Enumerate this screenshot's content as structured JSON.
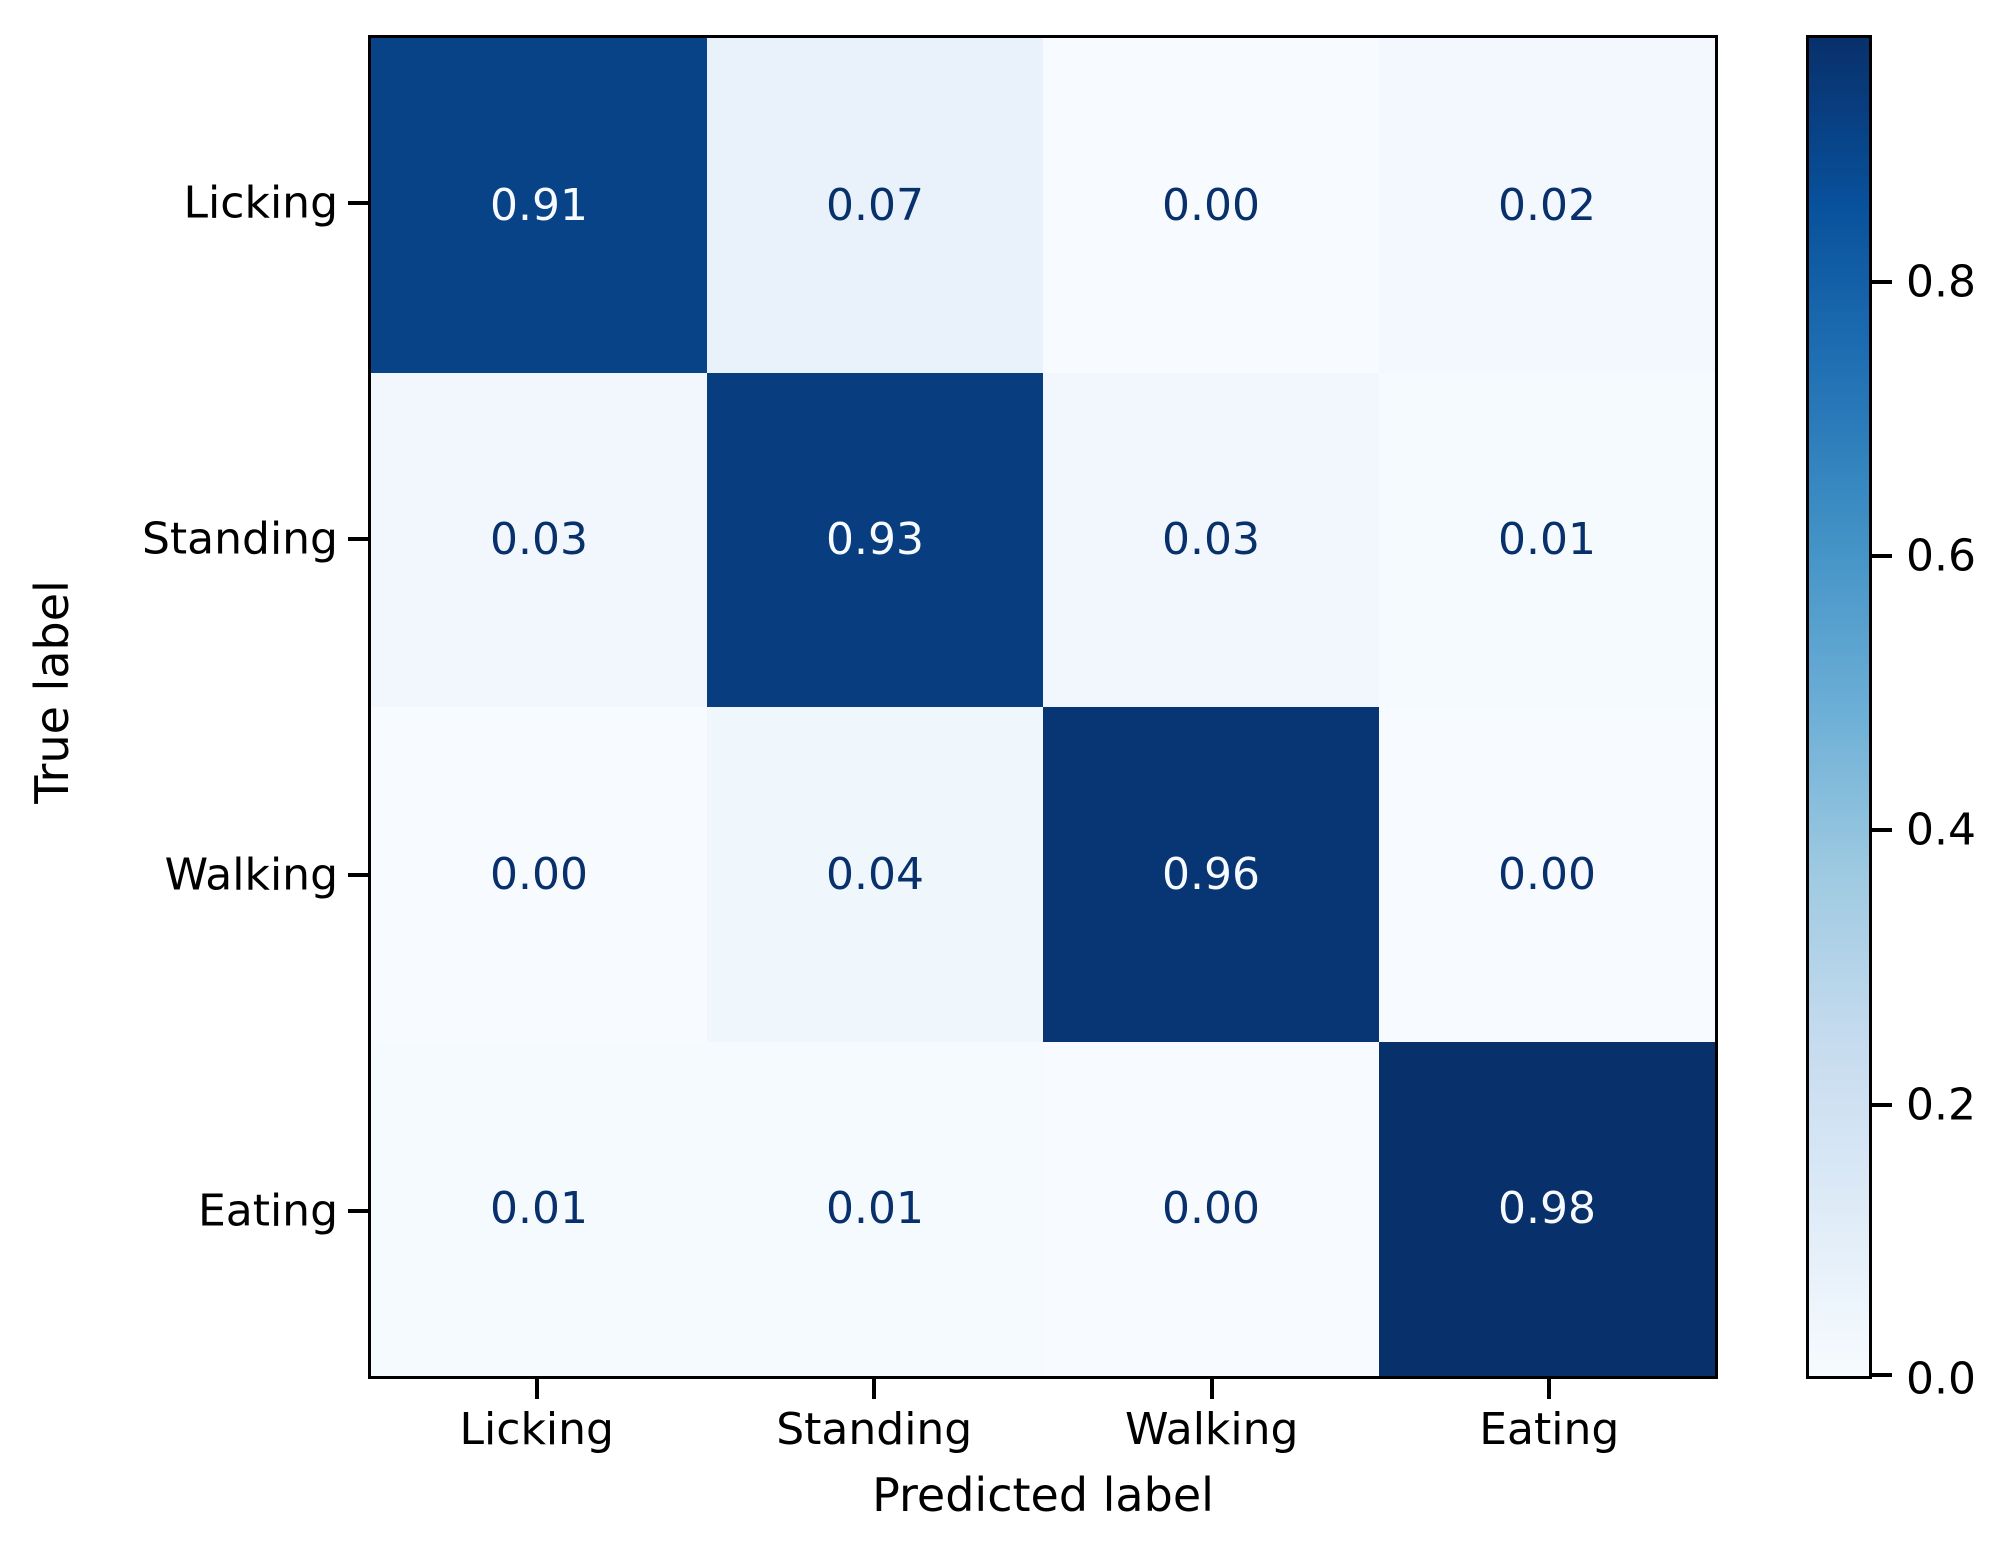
{
  "chart_data": {
    "type": "heatmap",
    "title": "",
    "xlabel": "Predicted label",
    "ylabel": "True label",
    "x_categories": [
      "Licking",
      "Standing",
      "Walking",
      "Eating"
    ],
    "y_categories": [
      "Licking",
      "Standing",
      "Walking",
      "Eating"
    ],
    "matrix": [
      [
        0.91,
        0.07,
        0.0,
        0.02
      ],
      [
        0.03,
        0.93,
        0.03,
        0.01
      ],
      [
        0.0,
        0.04,
        0.96,
        0.0
      ],
      [
        0.01,
        0.01,
        0.0,
        0.98
      ]
    ],
    "value_format_decimals": 2,
    "colormap": "Blues",
    "vmin": 0.0,
    "vmax": 0.98,
    "colorbar": {
      "tick_values": [
        0.0,
        0.2,
        0.4,
        0.6,
        0.8
      ],
      "tick_labels": [
        "0.0",
        "0.2",
        "0.4",
        "0.6",
        "0.8"
      ],
      "position": "right"
    },
    "colors": {
      "cmap_low": "#f7fbff",
      "cmap_high": "#08306b",
      "text_on_dark": "#f7fbff",
      "text_on_light": "#08306b",
      "axes": "#000000",
      "background": "#ffffff"
    },
    "legend": null,
    "grid": false
  }
}
